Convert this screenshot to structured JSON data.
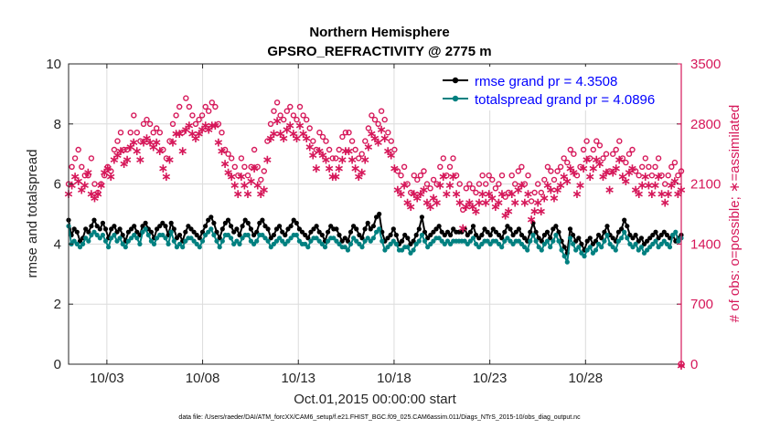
{
  "chart_data": {
    "type": "line",
    "title": "Northern Hemisphere",
    "subtitle": "GPSRO_REFRACTIVITY @ 2775 m",
    "xlabel": "Oct.01,2015 00:00:00 start",
    "ylabel": "rmse and totalspread",
    "ylabel_right": "# of obs: o=possible; ∗=assimilated",
    "footnote": "data file: /Users/raeder/DAI/ATM_forcXX/CAM6_setup/f.e21.FHIST_BGC.f09_025.CAM6assim.011/Diags_NTrS_2015-10/obs_diag_output.nc",
    "xlim": [
      1.0,
      33.0
    ],
    "x_tick_values": [
      3,
      8,
      13,
      18,
      23,
      28
    ],
    "x_tick_labels": [
      "10/03",
      "10/08",
      "10/13",
      "10/18",
      "10/23",
      "10/28"
    ],
    "ylim": [
      0,
      10
    ],
    "y_ticks": [
      0,
      2,
      4,
      6,
      8,
      10
    ],
    "ylim_right": [
      0,
      3500
    ],
    "y_ticks_right": [
      0,
      700,
      1400,
      2100,
      2800,
      3500
    ],
    "legend_position": "top-right",
    "series": [
      {
        "name": "rmse grand pr = 4.3508",
        "color": "#000000",
        "marker": "circle",
        "axis": "left",
        "values": [
          4.8,
          4.3,
          4.5,
          4.4,
          4.1,
          4.2,
          4.5,
          4.4,
          4.6,
          4.8,
          4.6,
          4.5,
          4.7,
          4.5,
          4.2,
          4.5,
          4.6,
          4.4,
          4.5,
          4.3,
          4.1,
          4.4,
          4.5,
          4.6,
          4.4,
          4.3,
          4.6,
          4.7,
          4.5,
          4.4,
          4.2,
          4.5,
          4.6,
          4.7,
          4.6,
          4.3,
          4.7,
          4.5,
          4.2,
          4.3,
          4.1,
          4.4,
          4.6,
          4.5,
          4.4,
          4.3,
          4.2,
          4.4,
          4.6,
          4.8,
          4.9,
          4.7,
          4.4,
          4.2,
          4.5,
          4.7,
          4.8,
          4.6,
          4.4,
          4.5,
          4.3,
          4.6,
          4.8,
          4.7,
          4.5,
          4.3,
          4.4,
          4.7,
          4.8,
          4.6,
          4.5,
          4.2,
          4.3,
          4.5,
          4.6,
          4.4,
          4.3,
          4.5,
          4.6,
          4.8,
          4.7,
          4.5,
          4.4,
          4.3,
          4.2,
          4.4,
          4.5,
          4.6,
          4.4,
          4.3,
          4.1,
          4.4,
          4.6,
          4.5,
          4.5,
          4.3,
          4.1,
          4.2,
          4.1,
          4.4,
          4.6,
          4.5,
          4.3,
          4.2,
          4.5,
          4.7,
          4.5,
          4.6,
          4.9,
          5.0,
          4.4,
          4.1,
          4.2,
          4.3,
          4.5,
          4.3,
          4.0,
          4.1,
          4.3,
          4.2,
          4.0,
          4.1,
          4.3,
          4.5,
          4.9,
          4.4,
          4.2,
          4.3,
          4.4,
          4.5,
          4.6,
          4.4,
          4.3,
          4.4,
          4.3,
          4.5,
          4.4,
          4.4,
          4.4,
          4.5,
          4.3,
          4.4,
          4.6,
          4.3,
          4.2,
          4.3,
          4.5,
          4.4,
          4.3,
          4.5,
          4.4,
          4.3,
          4.2,
          4.4,
          4.6,
          4.5,
          4.3,
          4.4,
          4.5,
          4.3,
          4.2,
          4.1,
          4.4,
          4.7,
          4.4,
          4.2,
          4.1,
          4.3,
          4.4,
          4.2,
          4.5,
          4.6,
          4.4,
          4.1,
          3.9,
          3.7,
          4.5,
          4.3,
          4.1,
          4.2,
          4.0,
          3.8,
          4.1,
          4.2,
          4.0,
          4.1,
          4.3,
          4.2,
          4.4,
          4.6,
          4.3,
          4.2,
          4.1,
          4.4,
          4.5,
          4.8,
          4.6,
          4.3,
          4.2,
          4.3,
          4.1,
          4.2,
          4.0,
          4.1,
          4.2,
          4.3,
          4.4,
          4.2,
          4.3,
          4.4,
          4.3,
          4.2,
          4.3,
          4.1,
          4.2,
          4.3
        ]
      },
      {
        "name": "totalspread grand pr = 4.0896",
        "color": "#008080",
        "marker": "circle",
        "axis": "left",
        "values": [
          4.6,
          4.0,
          4.1,
          4.0,
          3.9,
          4.0,
          4.2,
          4.1,
          4.3,
          4.4,
          4.3,
          4.2,
          4.3,
          4.1,
          3.9,
          4.2,
          4.3,
          4.1,
          4.2,
          4.0,
          3.9,
          4.1,
          4.2,
          4.3,
          4.2,
          4.0,
          4.4,
          4.5,
          4.3,
          4.1,
          4.0,
          4.2,
          4.3,
          4.3,
          4.2,
          4.0,
          4.4,
          4.1,
          3.9,
          4.0,
          3.9,
          4.1,
          4.2,
          4.2,
          4.1,
          4.0,
          3.9,
          4.1,
          4.3,
          4.4,
          4.5,
          4.3,
          4.1,
          3.9,
          4.1,
          4.3,
          4.3,
          4.2,
          4.0,
          4.1,
          4.0,
          4.2,
          4.3,
          4.3,
          4.1,
          4.0,
          4.1,
          4.3,
          4.3,
          4.2,
          4.1,
          3.9,
          4.0,
          4.1,
          4.2,
          4.1,
          4.0,
          4.1,
          4.2,
          4.3,
          4.3,
          4.1,
          4.0,
          4.0,
          3.9,
          4.1,
          4.2,
          4.2,
          4.1,
          4.0,
          3.9,
          4.1,
          4.2,
          4.2,
          4.1,
          4.0,
          3.9,
          3.9,
          3.8,
          4.0,
          4.2,
          4.1,
          4.0,
          3.9,
          4.1,
          4.2,
          4.1,
          4.2,
          4.4,
          4.5,
          4.1,
          3.8,
          3.9,
          4.0,
          4.1,
          4.0,
          3.8,
          3.8,
          3.9,
          3.9,
          3.7,
          3.8,
          4.0,
          4.1,
          4.3,
          4.1,
          3.9,
          4.0,
          4.1,
          4.2,
          4.2,
          4.1,
          4.0,
          4.1,
          4.0,
          4.1,
          4.1,
          4.1,
          4.1,
          4.1,
          4.0,
          4.1,
          4.2,
          4.0,
          3.9,
          4.0,
          4.1,
          4.1,
          4.0,
          4.1,
          4.1,
          4.0,
          3.9,
          4.1,
          4.2,
          4.1,
          4.0,
          4.1,
          4.1,
          4.0,
          3.9,
          3.8,
          4.1,
          4.3,
          4.1,
          3.9,
          3.8,
          4.0,
          4.1,
          3.9,
          4.1,
          4.3,
          4.1,
          3.8,
          3.6,
          3.4,
          4.2,
          4.0,
          3.8,
          3.9,
          3.7,
          3.6,
          3.8,
          3.9,
          3.7,
          3.8,
          4.0,
          3.9,
          4.1,
          4.3,
          4.0,
          3.9,
          3.8,
          4.1,
          4.2,
          4.4,
          4.2,
          4.0,
          3.9,
          4.0,
          3.8,
          3.9,
          3.7,
          3.8,
          3.9,
          4.0,
          4.1,
          3.9,
          4.0,
          4.1,
          4.0,
          3.9,
          4.3,
          4.4,
          4.1,
          4.2
        ]
      },
      {
        "name": "possible",
        "color": "#d6185a",
        "marker": "circle-open",
        "axis": "right",
        "values": [
          2100,
          2300,
          2400,
          2500,
          2300,
          2200,
          2200,
          2400,
          2100,
          2000,
          2100,
          2200,
          2300,
          2250,
          2500,
          2600,
          2700,
          2500,
          2500,
          2700,
          2900,
          2700,
          2600,
          2800,
          2850,
          2800,
          2700,
          2750,
          2700,
          2500,
          2400,
          2600,
          2800,
          2900,
          3000,
          2700,
          3100,
          3000,
          2900,
          2800,
          2850,
          2900,
          3000,
          2950,
          3050,
          3000,
          2800,
          2700,
          2500,
          2450,
          2400,
          2300,
          2200,
          2400,
          2300,
          2200,
          2300,
          2500,
          2300,
          2150,
          2250,
          2600,
          2800,
          2950,
          3050,
          2900,
          2850,
          2950,
          3000,
          2900,
          2850,
          3000,
          2900,
          2850,
          2750,
          2600,
          2500,
          2700,
          2650,
          2600,
          2500,
          2400,
          2400,
          2500,
          2650,
          2700,
          2700,
          2600,
          2500,
          2400,
          2450,
          2600,
          2750,
          2900,
          2850,
          2800,
          2950,
          2850,
          2700,
          2600,
          2500,
          2250,
          2200,
          2300,
          2100,
          2000,
          2200,
          2150,
          2200,
          2250,
          2100,
          2050,
          2150,
          2100,
          2300,
          2400,
          2200,
          2300,
          2400,
          2200,
          2100,
          1800,
          2050,
          2100,
          2050,
          2000,
          2100,
          2200,
          2100,
          2200,
          2150,
          2050,
          2100,
          2200,
          1950,
          2000,
          2200,
          2100,
          2250,
          2300,
          2100,
          2200,
          1900,
          2000,
          2100,
          2000,
          2150,
          2300,
          2250,
          2150,
          2250,
          2300,
          2400,
          2350,
          2500,
          2450,
          2200,
          2300,
          2500,
          2600,
          2400,
          2500,
          2600,
          2550,
          2400,
          2450,
          2250,
          2450,
          2500,
          2600,
          2400,
          2350,
          2450,
          2500,
          2250,
          2200,
          2300,
          2400,
          2300,
          2200,
          2300,
          2400,
          2200,
          2100,
          2200,
          2300,
          2350,
          2200,
          2250
        ]
      },
      {
        "name": "assimilated",
        "color": "#d6185a",
        "marker": "asterisk",
        "axis": "right",
        "values": [
          2000,
          2100,
          2200,
          2150,
          2050,
          2100,
          2250,
          2000,
          1950,
          2000,
          2100,
          2250,
          2300,
          2200,
          2400,
          2450,
          2500,
          2350,
          2400,
          2550,
          2600,
          2500,
          2400,
          2600,
          2650,
          2600,
          2550,
          2600,
          2500,
          2300,
          2200,
          2400,
          2600,
          2700,
          2700,
          2500,
          2750,
          2800,
          2700,
          2650,
          2700,
          2750,
          2800,
          2750,
          2800,
          2800,
          2600,
          2500,
          2350,
          2250,
          2200,
          2100,
          2000,
          2200,
          2100,
          2000,
          2150,
          2300,
          2100,
          2000,
          2050,
          2400,
          2650,
          2700,
          2850,
          2700,
          2650,
          2750,
          2800,
          2700,
          2650,
          2800,
          2700,
          2650,
          2550,
          2450,
          2300,
          2500,
          2450,
          2400,
          2300,
          2200,
          2200,
          2300,
          2400,
          2500,
          2500,
          2400,
          2300,
          2200,
          2250,
          2400,
          2550,
          2700,
          2650,
          2600,
          2750,
          2650,
          2500,
          2450,
          2300,
          2050,
          2000,
          2100,
          1900,
          1850,
          2000,
          1950,
          2000,
          2050,
          1900,
          1850,
          1950,
          1900,
          2100,
          2200,
          2000,
          2100,
          2200,
          2000,
          1900,
          1600,
          1850,
          1900,
          1850,
          1800,
          1900,
          2000,
          1900,
          2000,
          1950,
          1850,
          1900,
          2000,
          1750,
          1800,
          2000,
          1900,
          2050,
          2100,
          1900,
          2000,
          1700,
          1800,
          1900,
          1800,
          1950,
          2100,
          2050,
          1950,
          2050,
          2100,
          2200,
          2150,
          2300,
          2250,
          2000,
          2100,
          2300,
          2400,
          2200,
          2300,
          2400,
          2350,
          2200,
          2250,
          2050,
          2250,
          2300,
          2400,
          2200,
          2150,
          2250,
          2300,
          2050,
          2000,
          2100,
          2200,
          2100,
          2000,
          2100,
          2200,
          2000,
          1900,
          2000,
          2100,
          2150,
          2000,
          2050
        ]
      }
    ]
  }
}
